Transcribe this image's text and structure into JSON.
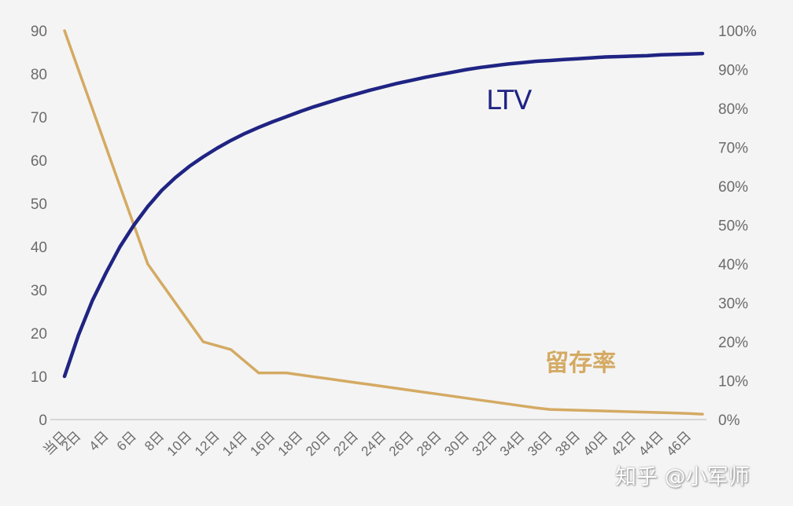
{
  "chart_data": {
    "type": "line",
    "title": "",
    "xlabel": "",
    "ylabel": "",
    "y2label": "",
    "grid": false,
    "legend_position": "inline annotations",
    "x": [
      1,
      2,
      3,
      4,
      5,
      6,
      7,
      8,
      9,
      10,
      11,
      12,
      13,
      14,
      15,
      16,
      17,
      18,
      19,
      20,
      21,
      22,
      23,
      24,
      25,
      26,
      27,
      28,
      29,
      30,
      31,
      32,
      33,
      34,
      35,
      36,
      37,
      38,
      39,
      40,
      41,
      42,
      43,
      44,
      45,
      46,
      47
    ],
    "x_tick_labels": [
      "当日",
      "2日",
      "4日",
      "6日",
      "8日",
      "10日",
      "12日",
      "14日",
      "16日",
      "18日",
      "20日",
      "22日",
      "24日",
      "26日",
      "28日",
      "30日",
      "32日",
      "34日",
      "36日",
      "38日",
      "40日",
      "42日",
      "44日",
      "46日"
    ],
    "x_tick_positions": [
      1,
      2,
      4,
      6,
      8,
      10,
      12,
      14,
      16,
      18,
      20,
      22,
      24,
      26,
      28,
      30,
      32,
      34,
      36,
      38,
      40,
      42,
      44,
      46
    ],
    "left_axis": {
      "ylim": [
        0,
        90
      ],
      "ticks": [
        0,
        10,
        20,
        30,
        40,
        50,
        60,
        70,
        80,
        90
      ],
      "tick_labels": [
        "0",
        "10",
        "20",
        "30",
        "40",
        "50",
        "60",
        "70",
        "80",
        "90"
      ]
    },
    "right_axis": {
      "ylim": [
        0,
        100
      ],
      "ticks": [
        0,
        10,
        20,
        30,
        40,
        50,
        60,
        70,
        80,
        90,
        100
      ],
      "tick_labels": [
        "0%",
        "10%",
        "20%",
        "30%",
        "40%",
        "50%",
        "60%",
        "70%",
        "80%",
        "90%",
        "100%"
      ]
    },
    "series": [
      {
        "name": "LTV",
        "axis": "left",
        "color": "#1f2483",
        "values": [
          10,
          19.5,
          27.5,
          34,
          40,
          45,
          49.3,
          53,
          56,
          58.6,
          60.8,
          62.8,
          64.6,
          66.2,
          67.6,
          68.9,
          70.1,
          71.3,
          72.4,
          73.4,
          74.4,
          75.3,
          76.2,
          77,
          77.8,
          78.5,
          79.2,
          79.8,
          80.4,
          81,
          81.5,
          81.9,
          82.3,
          82.6,
          82.9,
          83.1,
          83.3,
          83.5,
          83.7,
          83.9,
          84,
          84.1,
          84.2,
          84.4,
          84.5,
          84.6,
          84.7
        ]
      },
      {
        "name": "留存率",
        "axis": "right",
        "color": "#d4aa63",
        "values": [
          100,
          90,
          80,
          70,
          60,
          50,
          40,
          35,
          30,
          25,
          20,
          19,
          18,
          15,
          12,
          12,
          12,
          11.5,
          11,
          10.5,
          10,
          9.5,
          9,
          8.5,
          8,
          7.5,
          7,
          6.5,
          6,
          5.5,
          5,
          4.5,
          4,
          3.5,
          3,
          2.6,
          2.5,
          2.4,
          2.3,
          2.2,
          2.1,
          2,
          1.9,
          1.8,
          1.7,
          1.55,
          1.4
        ]
      }
    ],
    "annotations": [
      {
        "text": "LTV",
        "color": "#1f2483"
      },
      {
        "text": "留存率",
        "color": "#d4aa63"
      }
    ]
  },
  "labels": {
    "ltv": "LTV",
    "retention": "留存率",
    "watermark": "知乎 @小军师"
  },
  "colors": {
    "background": "#f4f4f4",
    "ltv": "#1f2483",
    "retention": "#d4aa63",
    "axis_line": "#d6d6d6",
    "tick_text": "#6b6b6b"
  }
}
